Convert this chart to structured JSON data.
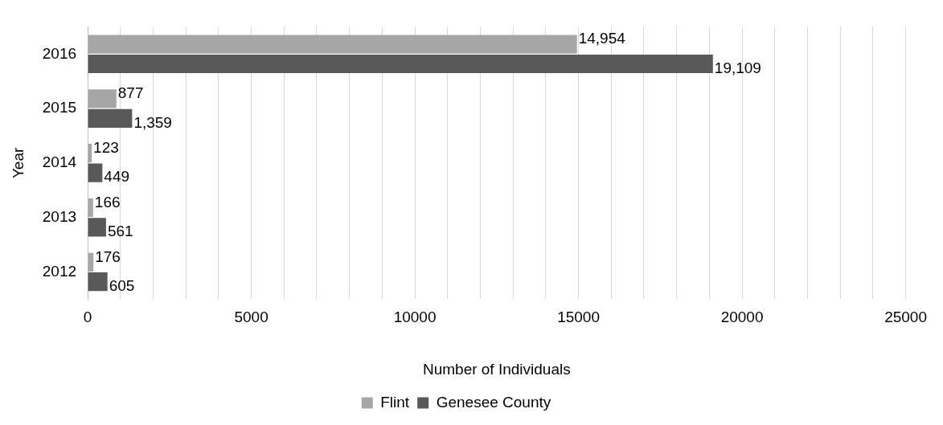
{
  "chart_data": {
    "type": "bar",
    "orientation": "horizontal",
    "xlabel": "Number of Individuals",
    "ylabel": "Year",
    "categories": [
      "2016",
      "2015",
      "2014",
      "2013",
      "2012"
    ],
    "series": [
      {
        "name": "Flint",
        "color": "#a6a6a6",
        "values": [
          14954,
          877,
          123,
          166,
          176
        ],
        "value_labels": [
          "14,954",
          "877",
          "123",
          "166",
          "176"
        ]
      },
      {
        "name": "Genesee County",
        "color": "#595959",
        "values": [
          19109,
          1359,
          449,
          561,
          605
        ],
        "value_labels": [
          "19,109",
          "1,359",
          "449",
          "561",
          "605"
        ]
      }
    ],
    "xlim": [
      0,
      25000
    ],
    "xticks": [
      0,
      {
        "value": 1000,
        "label": null
      },
      {
        "value": 2000,
        "label": null
      },
      {
        "value": 3000,
        "label": null
      },
      {
        "value": 4000,
        "label": null
      },
      5000,
      {
        "value": 6000,
        "label": null
      },
      {
        "value": 7000,
        "label": null
      },
      {
        "value": 8000,
        "label": null
      },
      {
        "value": 9000,
        "label": null
      },
      10000,
      {
        "value": 11000,
        "label": null
      },
      {
        "value": 12000,
        "label": null
      },
      {
        "value": 13000,
        "label": null
      },
      {
        "value": 14000,
        "label": null
      },
      15000,
      {
        "value": 16000,
        "label": null
      },
      {
        "value": 17000,
        "label": null
      },
      {
        "value": 18000,
        "label": null
      },
      {
        "value": 19000,
        "label": null
      },
      20000,
      {
        "value": 21000,
        "label": null
      },
      {
        "value": 22000,
        "label": null
      },
      {
        "value": 23000,
        "label": null
      },
      {
        "value": 24000,
        "label": null
      },
      25000
    ],
    "grid": "x",
    "legend": "bottom"
  }
}
